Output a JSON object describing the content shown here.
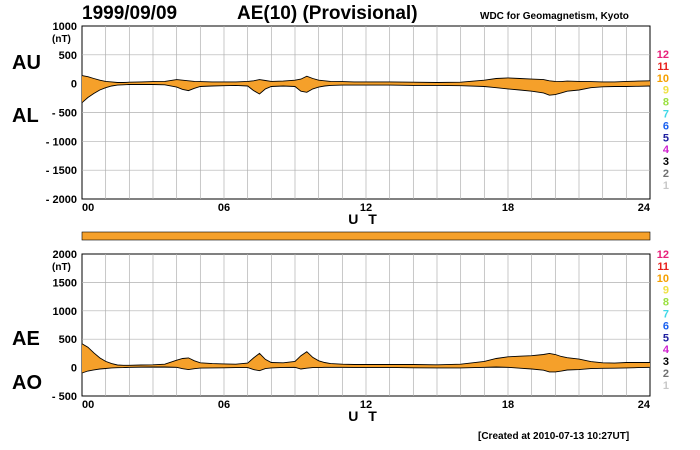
{
  "header": {
    "date": "1999/09/09",
    "title": "AE(10) (Provisional)",
    "source": "WDC for Geomagnetism, Kyoto",
    "created": "[Created at 2010-07-13 10:27UT]"
  },
  "colors": {
    "fill": "#f5a02a",
    "line": "#000000",
    "grid": "#b0b0b0",
    "bar": "#f5a02a"
  },
  "stations_legend": [
    {
      "label": "12",
      "color": "#e8207a"
    },
    {
      "label": "11",
      "color": "#e8201c"
    },
    {
      "label": "10",
      "color": "#f5a000"
    },
    {
      "label": "9",
      "color": "#f0e040"
    },
    {
      "label": "8",
      "color": "#9ae040"
    },
    {
      "label": "7",
      "color": "#40d8e8"
    },
    {
      "label": "6",
      "color": "#1a60f0"
    },
    {
      "label": "5",
      "color": "#2020a0"
    },
    {
      "label": "4",
      "color": "#d020d0"
    },
    {
      "label": "3",
      "color": "#000000"
    },
    {
      "label": "2",
      "color": "#707070"
    },
    {
      "label": "1",
      "color": "#c8c8c8"
    }
  ],
  "chart_data": [
    {
      "type": "area",
      "panel": "AU/AL",
      "labels": {
        "upper": "AU",
        "lower": "AL"
      },
      "unit": "(nT)",
      "xlabel": "U T",
      "xlim": [
        0,
        24
      ],
      "ylim": [
        -2000,
        1000
      ],
      "xticks": [
        "00",
        "06",
        "12",
        "18",
        "24"
      ],
      "yticks": [
        "1000",
        "500",
        "0",
        "- 500",
        "- 1000",
        "- 1500",
        "- 2000"
      ],
      "grid": true,
      "x_hours": [
        0,
        0.25,
        0.5,
        0.75,
        1,
        1.25,
        1.5,
        1.75,
        2,
        2.5,
        3,
        3.5,
        4,
        4.25,
        4.5,
        4.75,
        5,
        5.5,
        6,
        6.5,
        7,
        7.25,
        7.5,
        7.75,
        8,
        8.5,
        9,
        9.25,
        9.5,
        9.75,
        10,
        10.25,
        10.5,
        11,
        11.5,
        12,
        13,
        14,
        15,
        16,
        17,
        17.5,
        18,
        18.5,
        19,
        19.5,
        19.75,
        20,
        20.25,
        20.5,
        21,
        21.5,
        22,
        22.5,
        23,
        23.5,
        24
      ],
      "series": [
        {
          "name": "AU",
          "values": [
            140,
            120,
            90,
            60,
            40,
            30,
            20,
            20,
            25,
            30,
            35,
            40,
            70,
            60,
            50,
            40,
            35,
            30,
            30,
            30,
            40,
            50,
            70,
            55,
            40,
            45,
            60,
            80,
            130,
            90,
            60,
            50,
            40,
            35,
            30,
            30,
            30,
            25,
            20,
            25,
            60,
            90,
            100,
            90,
            80,
            70,
            50,
            40,
            35,
            45,
            40,
            35,
            30,
            30,
            40,
            45,
            50
          ]
        },
        {
          "name": "AL",
          "values": [
            -330,
            -240,
            -170,
            -110,
            -70,
            -40,
            -25,
            -20,
            -15,
            -15,
            -15,
            -20,
            -60,
            -100,
            -120,
            -80,
            -50,
            -40,
            -35,
            -30,
            -40,
            -120,
            -180,
            -90,
            -50,
            -40,
            -50,
            -130,
            -150,
            -90,
            -60,
            -40,
            -30,
            -25,
            -25,
            -25,
            -25,
            -30,
            -30,
            -35,
            -50,
            -70,
            -90,
            -110,
            -130,
            -160,
            -200,
            -190,
            -160,
            -130,
            -110,
            -70,
            -55,
            -50,
            -50,
            -45,
            -40
          ]
        }
      ]
    },
    {
      "type": "area",
      "panel": "AE/AO",
      "labels": {
        "upper": "AE",
        "lower": "AO"
      },
      "unit": "(nT)",
      "xlabel": "U T",
      "xlim": [
        0,
        24
      ],
      "ylim": [
        -500,
        2000
      ],
      "xticks": [
        "00",
        "06",
        "12",
        "18",
        "24"
      ],
      "yticks": [
        "2000",
        "1500",
        "1000",
        "500",
        "0",
        "- 500"
      ],
      "grid": true,
      "x_hours": [
        0,
        0.25,
        0.5,
        0.75,
        1,
        1.25,
        1.5,
        1.75,
        2,
        2.5,
        3,
        3.5,
        4,
        4.25,
        4.5,
        4.75,
        5,
        5.5,
        6,
        6.5,
        7,
        7.25,
        7.5,
        7.75,
        8,
        8.5,
        9,
        9.25,
        9.5,
        9.75,
        10,
        10.25,
        10.5,
        11,
        11.5,
        12,
        13,
        14,
        15,
        16,
        17,
        17.5,
        18,
        18.5,
        19,
        19.5,
        19.75,
        20,
        20.25,
        20.5,
        21,
        21.5,
        22,
        22.5,
        23,
        23.5,
        24
      ],
      "series": [
        {
          "name": "AE",
          "values": [
            420,
            360,
            260,
            170,
            110,
            70,
            45,
            40,
            40,
            45,
            50,
            60,
            130,
            160,
            170,
            120,
            85,
            70,
            65,
            60,
            80,
            170,
            250,
            145,
            90,
            85,
            110,
            210,
            280,
            180,
            120,
            90,
            70,
            60,
            55,
            55,
            55,
            55,
            50,
            60,
            110,
            160,
            190,
            200,
            210,
            230,
            250,
            230,
            195,
            175,
            150,
            105,
            85,
            80,
            90,
            90,
            90
          ]
        },
        {
          "name": "AO",
          "values": [
            -95,
            -60,
            -40,
            -25,
            -15,
            -5,
            -2,
            0,
            5,
            8,
            10,
            10,
            5,
            -20,
            -35,
            -20,
            -8,
            -5,
            -3,
            0,
            0,
            -35,
            -55,
            -18,
            -5,
            3,
            5,
            -25,
            -10,
            0,
            0,
            5,
            5,
            5,
            3,
            3,
            3,
            -3,
            -5,
            -5,
            5,
            10,
            5,
            -10,
            -25,
            -45,
            -75,
            -75,
            -62,
            -42,
            -35,
            -18,
            -12,
            -10,
            -5,
            0,
            5
          ]
        }
      ]
    }
  ]
}
